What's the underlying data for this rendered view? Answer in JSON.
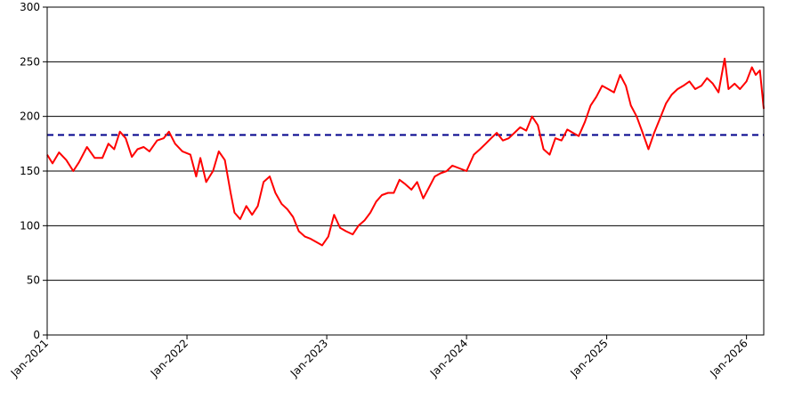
{
  "chart_data": {
    "type": "line",
    "title": "",
    "xlabel": "",
    "ylabel": "",
    "ylim": [
      0,
      300
    ],
    "xlim": [
      "2021-01-01",
      "2026-02-15"
    ],
    "y_ticks": [
      "0",
      "50",
      "100",
      "150",
      "200",
      "250",
      "300"
    ],
    "x_ticks": [
      {
        "date": "2021-01-01",
        "label": "Jan-2021"
      },
      {
        "date": "2022-01-01",
        "label": "Jan-2022"
      },
      {
        "date": "2023-01-01",
        "label": "Jan-2023"
      },
      {
        "date": "2024-01-01",
        "label": "Jan-2024"
      },
      {
        "date": "2025-01-01",
        "label": "Jan-2025"
      },
      {
        "date": "2026-01-01",
        "label": "Jan-2026"
      }
    ],
    "grid": "horizontal",
    "reference_line": {
      "value": 183,
      "color": "#00008B",
      "style": "dashed"
    },
    "series": [
      {
        "name": "",
        "color": "#FF0000",
        "points": [
          [
            "2021-01-01",
            165
          ],
          [
            "2021-01-15",
            157
          ],
          [
            "2021-02-01",
            167
          ],
          [
            "2021-02-20",
            160
          ],
          [
            "2021-03-10",
            150
          ],
          [
            "2021-03-25",
            158
          ],
          [
            "2021-04-15",
            172
          ],
          [
            "2021-05-05",
            162
          ],
          [
            "2021-05-25",
            162
          ],
          [
            "2021-06-10",
            175
          ],
          [
            "2021-06-25",
            170
          ],
          [
            "2021-07-10",
            186
          ],
          [
            "2021-07-25",
            180
          ],
          [
            "2021-08-10",
            163
          ],
          [
            "2021-08-25",
            170
          ],
          [
            "2021-09-10",
            172
          ],
          [
            "2021-09-25",
            168
          ],
          [
            "2021-10-15",
            178
          ],
          [
            "2021-11-01",
            180
          ],
          [
            "2021-11-15",
            186
          ],
          [
            "2021-12-01",
            175
          ],
          [
            "2021-12-20",
            168
          ],
          [
            "2022-01-10",
            165
          ],
          [
            "2022-01-25",
            145
          ],
          [
            "2022-02-05",
            162
          ],
          [
            "2022-02-20",
            140
          ],
          [
            "2022-03-10",
            150
          ],
          [
            "2022-03-25",
            168
          ],
          [
            "2022-04-10",
            160
          ],
          [
            "2022-04-25",
            130
          ],
          [
            "2022-05-05",
            112
          ],
          [
            "2022-05-20",
            106
          ],
          [
            "2022-06-05",
            118
          ],
          [
            "2022-06-20",
            110
          ],
          [
            "2022-07-05",
            118
          ],
          [
            "2022-07-20",
            140
          ],
          [
            "2022-08-05",
            145
          ],
          [
            "2022-08-20",
            130
          ],
          [
            "2022-09-05",
            120
          ],
          [
            "2022-09-20",
            115
          ],
          [
            "2022-10-05",
            108
          ],
          [
            "2022-10-20",
            95
          ],
          [
            "2022-11-05",
            90
          ],
          [
            "2022-11-20",
            88
          ],
          [
            "2022-12-05",
            85
          ],
          [
            "2022-12-20",
            82
          ],
          [
            "2023-01-05",
            90
          ],
          [
            "2023-01-20",
            110
          ],
          [
            "2023-02-05",
            98
          ],
          [
            "2023-02-20",
            95
          ],
          [
            "2023-03-10",
            92
          ],
          [
            "2023-03-25",
            100
          ],
          [
            "2023-04-10",
            105
          ],
          [
            "2023-04-25",
            112
          ],
          [
            "2023-05-10",
            122
          ],
          [
            "2023-05-25",
            128
          ],
          [
            "2023-06-10",
            130
          ],
          [
            "2023-06-25",
            130
          ],
          [
            "2023-07-10",
            142
          ],
          [
            "2023-07-25",
            138
          ],
          [
            "2023-08-10",
            133
          ],
          [
            "2023-08-25",
            140
          ],
          [
            "2023-09-10",
            125
          ],
          [
            "2023-09-25",
            135
          ],
          [
            "2023-10-10",
            145
          ],
          [
            "2023-10-25",
            148
          ],
          [
            "2023-11-10",
            150
          ],
          [
            "2023-11-25",
            155
          ],
          [
            "2024-01-01",
            150
          ],
          [
            "2024-01-20",
            165
          ],
          [
            "2024-02-05",
            170
          ],
          [
            "2024-02-20",
            175
          ],
          [
            "2024-03-05",
            180
          ],
          [
            "2024-03-20",
            185
          ],
          [
            "2024-04-05",
            178
          ],
          [
            "2024-04-20",
            180
          ],
          [
            "2024-05-05",
            185
          ],
          [
            "2024-05-20",
            190
          ],
          [
            "2024-06-05",
            187
          ],
          [
            "2024-06-20",
            200
          ],
          [
            "2024-07-05",
            192
          ],
          [
            "2024-07-20",
            170
          ],
          [
            "2024-08-05",
            165
          ],
          [
            "2024-08-20",
            180
          ],
          [
            "2024-09-05",
            178
          ],
          [
            "2024-09-20",
            188
          ],
          [
            "2024-10-05",
            185
          ],
          [
            "2024-10-20",
            182
          ],
          [
            "2024-11-05",
            195
          ],
          [
            "2024-11-20",
            210
          ],
          [
            "2024-12-05",
            218
          ],
          [
            "2024-12-20",
            228
          ],
          [
            "2025-01-05",
            225
          ],
          [
            "2025-01-20",
            222
          ],
          [
            "2025-02-05",
            238
          ],
          [
            "2025-02-20",
            228
          ],
          [
            "2025-03-05",
            210
          ],
          [
            "2025-03-20",
            200
          ],
          [
            "2025-04-05",
            185
          ],
          [
            "2025-04-20",
            170
          ],
          [
            "2025-05-05",
            185
          ],
          [
            "2025-05-20",
            198
          ],
          [
            "2025-06-05",
            212
          ],
          [
            "2025-06-20",
            220
          ],
          [
            "2025-07-05",
            225
          ],
          [
            "2025-07-20",
            228
          ],
          [
            "2025-08-05",
            232
          ],
          [
            "2025-08-20",
            225
          ],
          [
            "2025-09-05",
            228
          ],
          [
            "2025-09-20",
            235
          ],
          [
            "2025-10-05",
            230
          ],
          [
            "2025-10-20",
            222
          ],
          [
            "2025-11-05",
            253
          ],
          [
            "2025-11-15",
            225
          ],
          [
            "2025-12-01",
            230
          ],
          [
            "2025-12-15",
            225
          ],
          [
            "2026-01-01",
            232
          ],
          [
            "2026-01-15",
            245
          ],
          [
            "2026-01-25",
            238
          ],
          [
            "2026-02-05",
            242
          ],
          [
            "2026-02-15",
            207
          ]
        ]
      }
    ]
  }
}
